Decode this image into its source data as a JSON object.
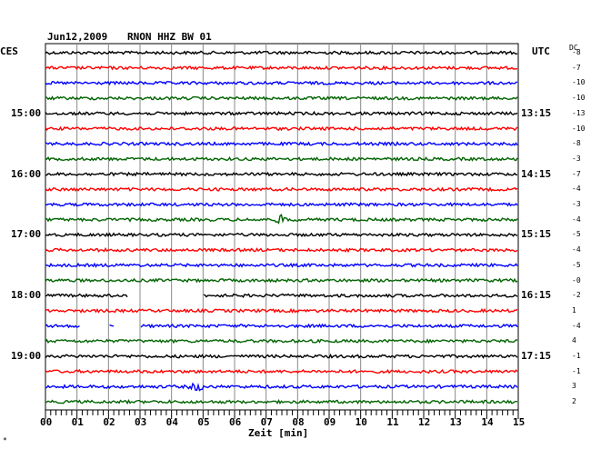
{
  "header": {
    "date": "Jun12,2009",
    "station": "RNON HHZ BW 01"
  },
  "left_zone": "CES",
  "right_zone": "UTC",
  "dc_label": "DC",
  "left_times": [
    "15:00",
    "16:00",
    "17:00",
    "18:00",
    "19:00"
  ],
  "right_times": [
    "13:15",
    "14:15",
    "15:15",
    "16:15",
    "17:15"
  ],
  "dc_values": [
    "-8",
    "-7",
    "-10",
    "-10",
    "-13",
    "-10",
    "-8",
    "-3",
    "-7",
    "-4",
    "-3",
    "-4",
    "-5",
    "-4",
    "-5",
    "-0",
    "-2",
    "1",
    "-4",
    "4",
    "-1",
    "-1",
    "3",
    "2"
  ],
  "xlabel": "Zeit [min]",
  "footer_mark": "*",
  "chart_data": {
    "type": "line",
    "title": "Jun12,2009   RNON HHZ BW 01",
    "xlabel": "Zeit [min]",
    "xlim": [
      0,
      15
    ],
    "x_ticks": [
      "00",
      "01",
      "02",
      "03",
      "04",
      "05",
      "06",
      "07",
      "08",
      "09",
      "10",
      "11",
      "12",
      "13",
      "14",
      "15"
    ],
    "trace_count": 24,
    "colors": [
      "#000000",
      "#ff0000",
      "#0000ff",
      "#006400"
    ],
    "grid": true,
    "gaps": [
      {
        "trace": 16,
        "from": 2.6,
        "to": 4.0
      },
      {
        "trace": 16,
        "from": 4.05,
        "to": 5.0
      },
      {
        "trace": 18,
        "from": 1.1,
        "to": 2.0
      },
      {
        "trace": 18,
        "from": 2.2,
        "to": 3.0
      }
    ],
    "events": [
      {
        "trace": 11,
        "at": 7.5
      },
      {
        "trace": 22,
        "at": 4.8
      }
    ]
  }
}
